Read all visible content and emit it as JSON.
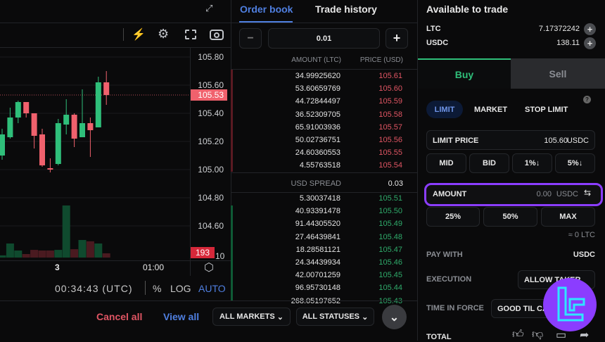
{
  "chart": {
    "type": "candlestick",
    "price_ticks": [
      "105.80",
      "105.60",
      "105.40",
      "105.20",
      "105.00",
      "104.80",
      "104.60"
    ],
    "current_price": "105.53",
    "volume_label": "193",
    "axis_partial_label": "10",
    "x_ticks": [
      "3",
      "01:00"
    ],
    "candles": [
      {
        "o": 105.1,
        "h": 105.29,
        "l": 105.07,
        "c": 105.25,
        "v": 100
      },
      {
        "o": 105.23,
        "h": 105.44,
        "l": 105.22,
        "c": 105.37,
        "v": 640
      },
      {
        "o": 105.37,
        "h": 105.49,
        "l": 105.33,
        "c": 105.48,
        "v": 320
      },
      {
        "o": 105.48,
        "h": 105.48,
        "l": 105.37,
        "c": 105.4,
        "v": 160
      },
      {
        "o": 105.4,
        "h": 105.4,
        "l": 105.15,
        "c": 105.24,
        "v": 350
      },
      {
        "o": 105.25,
        "h": 105.29,
        "l": 105.02,
        "c": 105.03,
        "v": 320
      },
      {
        "o": 105.01,
        "h": 105.08,
        "l": 104.98,
        "c": 105.0,
        "v": 320
      },
      {
        "o": 105.04,
        "h": 105.36,
        "l": 105.03,
        "c": 105.33,
        "v": 350
      },
      {
        "o": 105.32,
        "h": 105.5,
        "l": 105.25,
        "c": 105.39,
        "v": 2370
      },
      {
        "o": 105.39,
        "h": 105.4,
        "l": 105.16,
        "c": 105.22,
        "v": 380
      },
      {
        "o": 105.23,
        "h": 105.57,
        "l": 105.23,
        "c": 105.33,
        "v": 800
      },
      {
        "o": 105.33,
        "h": 105.37,
        "l": 105.09,
        "c": 105.28,
        "v": 740
      },
      {
        "o": 105.3,
        "h": 105.66,
        "l": 105.3,
        "c": 105.62,
        "v": 640
      },
      {
        "o": 105.62,
        "h": 105.7,
        "l": 105.46,
        "c": 105.53,
        "v": 193
      }
    ],
    "colors": {
      "up": "#2fbf7a",
      "down": "#f0616d",
      "vol_up": "#0f4a2e",
      "vol_down": "#4a1a20"
    },
    "time": "00:34:43 (UTC)",
    "percent": "%",
    "log": "LOG",
    "auto": "AUTO"
  },
  "orderbook": {
    "tabs": [
      "Order book",
      "Trade history"
    ],
    "step": "0.01",
    "headers": {
      "amount": "AMOUNT (LTC)",
      "price": "PRICE (USD)"
    },
    "asks": [
      [
        "34.99925620",
        "105.61"
      ],
      [
        "53.60659769",
        "105.60"
      ],
      [
        "44.72844497",
        "105.59"
      ],
      [
        "36.52309705",
        "105.58"
      ],
      [
        "65.91003936",
        "105.57"
      ],
      [
        "50.02736751",
        "105.56"
      ],
      [
        "24.60360553",
        "105.55"
      ],
      [
        "4.55763518",
        "105.54"
      ]
    ],
    "spread_label": "USD SPREAD",
    "spread": "0.03",
    "bids": [
      [
        "5.30037418",
        "105.51"
      ],
      [
        "40.93391478",
        "105.50"
      ],
      [
        "91.44305520",
        "105.49"
      ],
      [
        "27.46439841",
        "105.48"
      ],
      [
        "18.28581121",
        "105.47"
      ],
      [
        "24.34439934",
        "105.46"
      ],
      [
        "42.00701259",
        "105.45"
      ],
      [
        "96.95730148",
        "105.44"
      ],
      [
        "268.05197652",
        "105.43"
      ]
    ]
  },
  "bottom": {
    "cancel_all": "Cancel all",
    "view_all": "View all",
    "markets": "ALL MARKETS",
    "statuses": "ALL STATUSES"
  },
  "trade": {
    "available_title": "Available to trade",
    "balances": [
      {
        "asset": "LTC",
        "amount": "7.17372242"
      },
      {
        "asset": "USDC",
        "amount": "138.11"
      }
    ],
    "buy": "Buy",
    "sell": "Sell",
    "order_types": [
      "LIMIT",
      "MARKET",
      "STOP LIMIT"
    ],
    "help": "?",
    "limit_price_label": "LIMIT PRICE",
    "limit_price": "105.60",
    "limit_unit": "USDC",
    "presets": [
      "MID",
      "BID",
      "1%↓",
      "5%↓"
    ],
    "amount_label": "AMOUNT",
    "amount": "0.00",
    "amount_unit": "USDC",
    "pct": [
      "25%",
      "50%",
      "MAX"
    ],
    "approx": "≈ 0 LTC",
    "pay_with_label": "PAY WITH",
    "pay_with": "USDC",
    "execution_label": "EXECUTION",
    "execution": "ALLOW TAKER",
    "tif_label": "TIME IN FORCE",
    "tif": "GOOD TIL CANCELLED",
    "total_label": "TOTAL"
  },
  "colors": {
    "accent": "#4f7fe0",
    "buy": "#2fbf7a",
    "sell": "#f0616d",
    "highlight": "#8b3dff"
  }
}
